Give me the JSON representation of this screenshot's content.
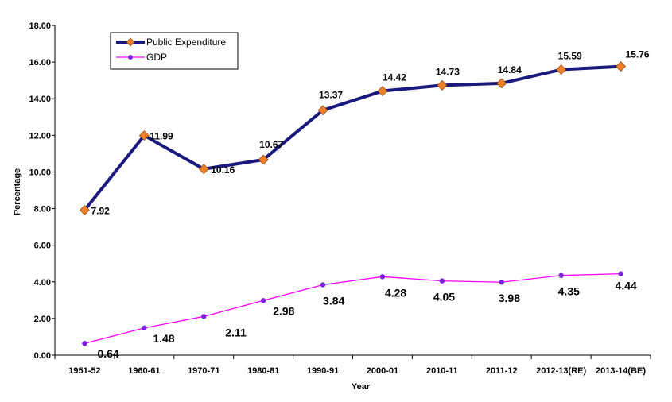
{
  "chart_data": {
    "type": "line",
    "title": "",
    "xlabel": "Year",
    "ylabel": "Percentage",
    "ylim": [
      0,
      18
    ],
    "ytick_step": 2,
    "ytick_labels": [
      "0.00",
      "2.00",
      "4.00",
      "6.00",
      "8.00",
      "10.00",
      "12.00",
      "14.00",
      "16.00",
      "18.00"
    ],
    "grid": false,
    "legend_position": "top-left",
    "categories": [
      "1951-52",
      "1960-61",
      "1970-71",
      "1980-81",
      "1990-91",
      "2000-01",
      "2010-11",
      "2011-12",
      "2012-13(RE)",
      "2013-14(BE)"
    ],
    "series": [
      {
        "name": "Public Expenditure",
        "values": [
          7.92,
          11.99,
          10.16,
          10.67,
          13.37,
          14.42,
          14.73,
          14.84,
          15.59,
          15.76
        ],
        "labels": [
          "7.92",
          "11.99",
          "10.16",
          "10.67",
          "13.37",
          "14.42",
          "14.73",
          "14.84",
          "15.59",
          "15.76"
        ],
        "line_color": "#1a1a7e",
        "marker_color": "#f07f2a",
        "marker": "diamond"
      },
      {
        "name": "GDP",
        "values": [
          0.64,
          1.48,
          2.11,
          2.98,
          3.84,
          4.28,
          4.05,
          3.98,
          4.35,
          4.44
        ],
        "labels": [
          "0.64",
          "1.48",
          "2.11",
          "2.98",
          "3.84",
          "4.28",
          "4.05",
          "3.98",
          "4.35",
          "4.44"
        ],
        "line_color": "#ff00ff",
        "marker_color": "#7b1fe0",
        "marker": "circle"
      }
    ]
  }
}
